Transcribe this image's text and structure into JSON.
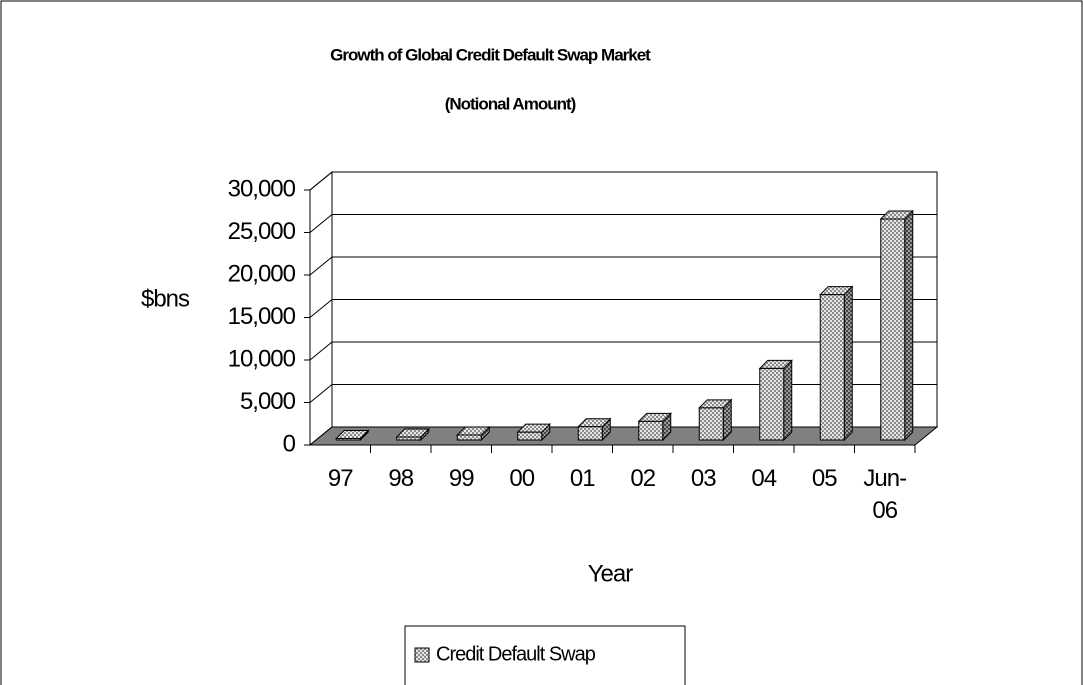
{
  "chart_data": {
    "type": "bar",
    "title": "Growth of Global Credit Default Swap Market",
    "subtitle": "(Notional Amount)",
    "y_label": "$bns",
    "x_label": "Year",
    "categories": [
      "97",
      "98",
      "99",
      "00",
      "01",
      "02",
      "03",
      "04",
      "05",
      "Jun-06"
    ],
    "series": [
      {
        "name": "Credit Default Swap",
        "color": "#c8c8c8",
        "values": [
          180,
          350,
          590,
          920,
          1560,
          2190,
          3780,
          8420,
          17100,
          26000
        ]
      }
    ],
    "ylim": [
      0,
      30000
    ],
    "yticks": [
      0,
      {
        "value": 5000,
        "label": "5,000"
      },
      {
        "value": 10000,
        "label": "10,000"
      },
      {
        "value": 15000,
        "label": "15,000"
      },
      {
        "value": 20000,
        "label": "20,000"
      },
      {
        "value": 25000,
        "label": "25,000"
      },
      {
        "value": 30000,
        "label": "30,000"
      }
    ],
    "grid": true,
    "legend": "bottom"
  }
}
